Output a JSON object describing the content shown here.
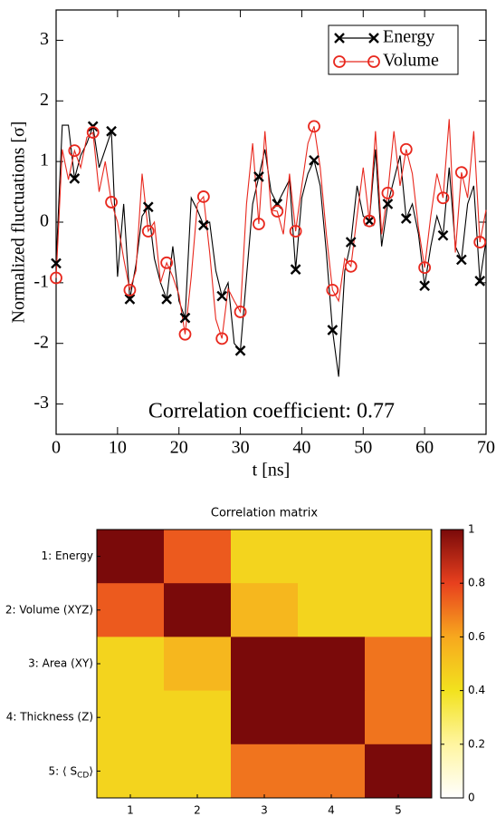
{
  "chart_data": [
    {
      "type": "line",
      "xlabel": "t [ns]",
      "ylabel": "Normalized fluctuations [σ]",
      "annotation": "Correlation coefficient: 0.77",
      "x": [
        0,
        1,
        2,
        3,
        4,
        5,
        6,
        7,
        8,
        9,
        10,
        11,
        12,
        13,
        14,
        15,
        16,
        17,
        18,
        19,
        20,
        21,
        22,
        23,
        24,
        25,
        26,
        27,
        28,
        29,
        30,
        31,
        32,
        33,
        34,
        35,
        36,
        37,
        38,
        39,
        40,
        41,
        42,
        43,
        44,
        45,
        46,
        47,
        48,
        49,
        50,
        51,
        52,
        53,
        54,
        55,
        56,
        57,
        58,
        59,
        60,
        61,
        62,
        63,
        64,
        65,
        66,
        67,
        68,
        69,
        70
      ],
      "series": [
        {
          "name": "Energy",
          "color": "#000000",
          "marker": "x",
          "values": [
            -0.68,
            1.6,
            1.6,
            0.72,
            1.1,
            1.3,
            1.58,
            0.9,
            1.2,
            1.5,
            -0.9,
            0.3,
            -1.27,
            -0.7,
            0.1,
            0.25,
            -0.6,
            -1.0,
            -1.27,
            -0.4,
            -1.3,
            -1.58,
            0.4,
            0.2,
            -0.05,
            0.0,
            -0.8,
            -1.22,
            -1.0,
            -2.0,
            -2.12,
            -0.9,
            0.3,
            0.75,
            1.2,
            0.5,
            0.3,
            0.5,
            0.7,
            -0.78,
            0.4,
            0.8,
            1.02,
            0.6,
            -0.5,
            -1.78,
            -2.55,
            -0.8,
            -0.33,
            0.6,
            0.1,
            0.02,
            1.2,
            -0.4,
            0.3,
            0.7,
            1.1,
            0.06,
            0.3,
            -0.2,
            -1.05,
            -0.4,
            0.1,
            -0.22,
            0.9,
            -0.4,
            -0.62,
            0.3,
            0.6,
            -0.97,
            -0.3
          ]
        },
        {
          "name": "Volume",
          "color": "#e8281e",
          "marker": "o",
          "values": [
            -0.92,
            1.2,
            0.7,
            1.18,
            0.9,
            1.4,
            1.48,
            0.5,
            1.0,
            0.33,
            0.0,
            -0.6,
            -1.12,
            -0.8,
            0.8,
            -0.15,
            0.0,
            -1.0,
            -0.67,
            -0.9,
            -1.2,
            -1.85,
            -0.9,
            0.3,
            0.42,
            -0.5,
            -1.6,
            -1.92,
            -1.1,
            -1.3,
            -1.48,
            0.3,
            1.3,
            -0.03,
            1.5,
            0.2,
            0.18,
            -0.2,
            0.8,
            -0.15,
            0.6,
            1.3,
            1.58,
            0.9,
            -0.2,
            -1.12,
            -1.3,
            -0.6,
            -0.73,
            0.1,
            0.9,
            0.02,
            1.5,
            -0.2,
            0.48,
            1.5,
            0.6,
            1.2,
            0.8,
            -0.1,
            -0.75,
            0.1,
            0.8,
            0.4,
            1.7,
            -0.5,
            0.82,
            0.4,
            1.5,
            -0.33,
            0.2
          ]
        }
      ],
      "marker_every": 3,
      "xlim": [
        0,
        70
      ],
      "ylim": [
        -3.5,
        3.5
      ],
      "xticks": [
        0,
        10,
        20,
        30,
        40,
        50,
        60,
        70
      ],
      "yticks": [
        -3,
        -2,
        -1,
        0,
        1,
        2,
        3
      ],
      "legend": "upper right"
    },
    {
      "type": "heatmap",
      "title": "Correlation matrix",
      "row_labels": [
        "1: Energy",
        "2: Volume (XYZ)",
        "3: Area (XY)",
        "4: Thickness (Z)",
        {
          "text": "5: ⟨ S",
          "subscript": "CD",
          "suffix": "⟩"
        }
      ],
      "col_labels": [
        "1",
        "2",
        "3",
        "4",
        "5"
      ],
      "values": [
        [
          1,
          0.75,
          0.45,
          0.45,
          0.45
        ],
        [
          0.75,
          1,
          0.55,
          0.45,
          0.45
        ],
        [
          0.45,
          0.55,
          1,
          1,
          0.7
        ],
        [
          0.45,
          0.45,
          1,
          1,
          0.7
        ],
        [
          0.45,
          0.45,
          0.7,
          0.7,
          1
        ]
      ],
      "colormap": [
        "#ffffff",
        "#fff5a0",
        "#f2e21e",
        "#f7a81e",
        "#e8401e",
        "#7a0a0a"
      ],
      "clim": [
        0,
        1
      ],
      "cticks": [
        0,
        0.2,
        0.4,
        0.6,
        0.8,
        1
      ]
    }
  ]
}
